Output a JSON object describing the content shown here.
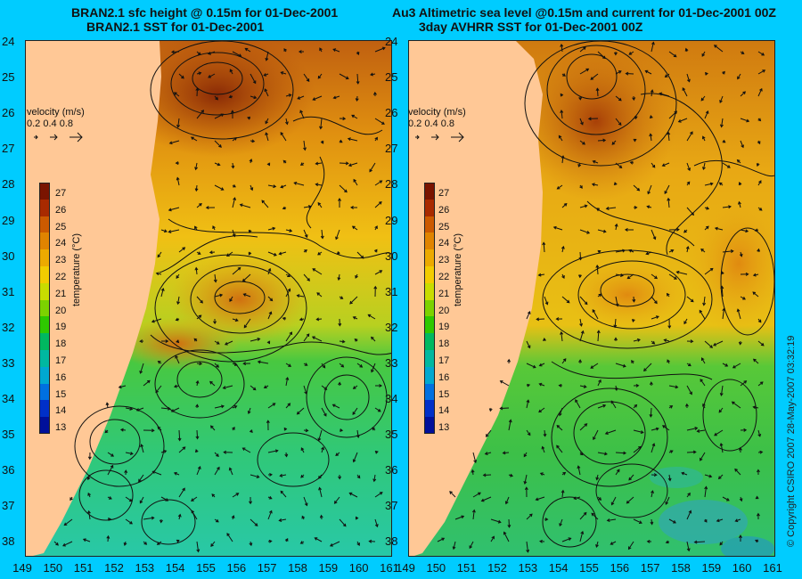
{
  "titles": {
    "left_line1": "BRAN2.1 sfc height @ 0.15m for 01-Dec-2001",
    "left_line2": "BRAN2.1 SST for 01-Dec-2001",
    "right_line1": "Au3 Altimetric sea level  @0.15m and current for 01-Dec-2001 00Z",
    "right_line2": "3day AVHRR SST for 01-Dec-2001 00Z"
  },
  "y_ticks": [
    "24",
    "25",
    "26",
    "27",
    "28",
    "29",
    "30",
    "31",
    "32",
    "33",
    "34",
    "35",
    "36",
    "37",
    "38"
  ],
  "x_ticks": [
    "149",
    "150",
    "151",
    "152",
    "153",
    "154",
    "155",
    "156",
    "157",
    "158",
    "159",
    "160",
    "161"
  ],
  "velocity_legend": {
    "title": "velocity (m/s)",
    "values": "0.2 0.4 0.8"
  },
  "colorbar": {
    "label": "temperature (°C)",
    "ticks": [
      "27",
      "26",
      "25",
      "24",
      "23",
      "22",
      "21",
      "20",
      "19",
      "18",
      "17",
      "16",
      "15",
      "14",
      "13"
    ],
    "colors": [
      "#7a1400",
      "#a82a00",
      "#cc5a00",
      "#e08400",
      "#ecaa00",
      "#f2cc00",
      "#c8dc00",
      "#7cd200",
      "#2ec800",
      "#00b860",
      "#00b8a0",
      "#00a8d0",
      "#0070e0",
      "#0030c8",
      "#00109a"
    ]
  },
  "copyright": "© Copyright CSIRO 2007   28-May-2007 03:32:19",
  "map_colors": {
    "land": "#ffc896",
    "warm_dark": "#9a3a0a",
    "warm": "#d2780a",
    "orange": "#e6a014",
    "yellow": "#f0c814",
    "lime": "#b4d21e",
    "green": "#3cc83c",
    "teal": "#28c8aa",
    "cool": "#1e8cdc"
  }
}
